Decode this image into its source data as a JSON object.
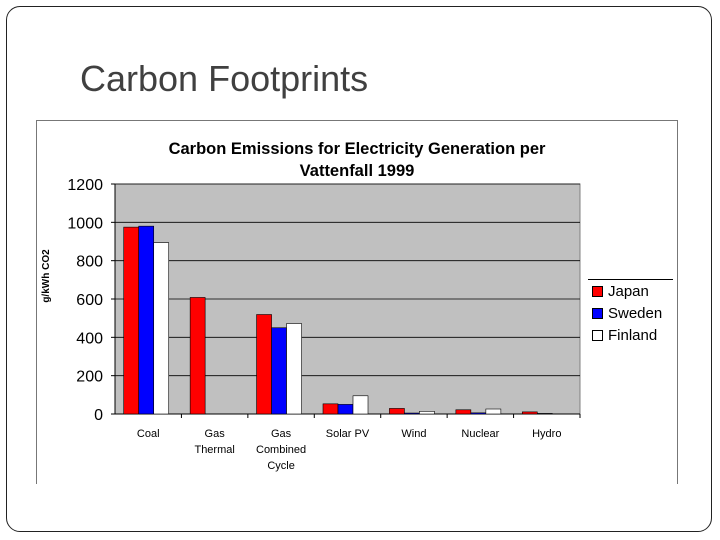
{
  "slide": {
    "title": "Carbon Footprints"
  },
  "chart_data": {
    "type": "bar",
    "title": "Carbon Emissions for Electricity Generation per\nVattenfall 1999",
    "xlabel": "",
    "ylabel": "g/kWh CO2",
    "ylim": [
      0,
      1200
    ],
    "yticks": [
      0,
      200,
      400,
      600,
      800,
      1000,
      1200
    ],
    "categories": [
      "Coal",
      "Gas\nThermal",
      "Gas\nCombined\nCycle",
      "Solar PV",
      "Wind",
      "Nuclear",
      "Hydro"
    ],
    "series": [
      {
        "name": "Japan",
        "color": "#ff0000",
        "values": [
          975,
          608,
          519,
          53,
          29,
          22,
          11
        ]
      },
      {
        "name": "Sweden",
        "color": "#0000ff",
        "values": [
          980,
          null,
          450,
          50,
          5,
          6,
          3
        ]
      },
      {
        "name": "Finland",
        "color": "#ffffff",
        "values": [
          894,
          null,
          472,
          95,
          14,
          26,
          null
        ]
      }
    ],
    "grid": true,
    "plot_background": "#c0c0c0",
    "legend_position": "right"
  }
}
